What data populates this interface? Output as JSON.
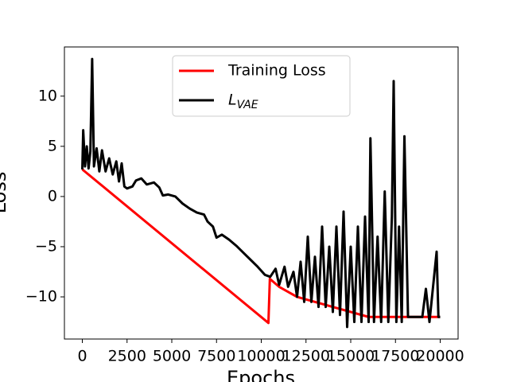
{
  "chart_data": {
    "type": "line",
    "xlabel": "Epochs",
    "ylabel": "Loss",
    "xlim": [
      -1000,
      21000
    ],
    "ylim": [
      -14.2,
      14.9
    ],
    "xticks": [
      0,
      2500,
      5000,
      7500,
      10000,
      12500,
      15000,
      17500,
      20000
    ],
    "yticks": [
      {
        "value": -10,
        "label": "−10"
      },
      {
        "value": -5,
        "label": "−5"
      },
      0,
      5,
      10
    ],
    "legend": "upper center",
    "series": [
      {
        "name": "Training Loss",
        "color": "#ff0000",
        "x": [
          0,
          10400,
          10480,
          11000,
          12000,
          14000,
          16000,
          20000
        ],
        "values": [
          2.7,
          -12.6,
          -8.2,
          -9,
          -10,
          -11,
          -12,
          -12
        ]
      },
      {
        "name": "L",
        "name_subscript": "VAE",
        "color": "#000000",
        "x": [
          0,
          50,
          150,
          250,
          350,
          450,
          550,
          650,
          800,
          950,
          1100,
          1300,
          1500,
          1700,
          1900,
          2050,
          2200,
          2350,
          2500,
          2800,
          3000,
          3300,
          3600,
          4000,
          4300,
          4500,
          4800,
          5200,
          5600,
          6000,
          6400,
          6800,
          7000,
          7300,
          7500,
          7800,
          8200,
          8600,
          9000,
          9400,
          9800,
          10200,
          10500,
          10800,
          11000,
          11300,
          11500,
          11800,
          12000,
          12200,
          12400,
          12600,
          12800,
          13000,
          13200,
          13400,
          13600,
          13800,
          14000,
          14200,
          14400,
          14600,
          14800,
          15000,
          15200,
          15400,
          15600,
          15800,
          16000,
          16100,
          16300,
          16500,
          16700,
          16900,
          17100,
          17300,
          17400,
          17550,
          17700,
          17850,
          18000,
          18200,
          18600,
          19000,
          19200,
          19400,
          19600,
          19800,
          19900,
          20000
        ],
        "values": [
          2.7,
          6.6,
          3,
          5,
          2.8,
          4.5,
          13.7,
          3,
          4.8,
          2.5,
          4.6,
          2.5,
          3.8,
          2.2,
          3.5,
          1.5,
          3.3,
          1.0,
          0.8,
          1.0,
          1.6,
          1.8,
          1.2,
          1.4,
          0.9,
          0.1,
          0.2,
          0.0,
          -0.7,
          -1.2,
          -1.6,
          -1.8,
          -2.5,
          -3.0,
          -4.1,
          -3.8,
          -4.3,
          -4.9,
          -5.6,
          -6.3,
          -7.0,
          -7.8,
          -8.0,
          -7.2,
          -8.8,
          -7.0,
          -9.0,
          -7.5,
          -10,
          -6.5,
          -10.5,
          -4.0,
          -10.5,
          -6,
          -11,
          -3,
          -11,
          -5,
          -11.5,
          -3,
          -11.8,
          -1.5,
          -13,
          -5,
          -12.5,
          -3,
          -12.5,
          -2,
          -12.5,
          5.8,
          -12.5,
          -4,
          -12.5,
          0.5,
          -12.5,
          -2,
          11.5,
          -12.5,
          -3,
          -12.5,
          6,
          -12,
          -12,
          -12,
          -9.2,
          -12.5,
          -9,
          -5.5,
          -12,
          -12
        ]
      }
    ]
  }
}
